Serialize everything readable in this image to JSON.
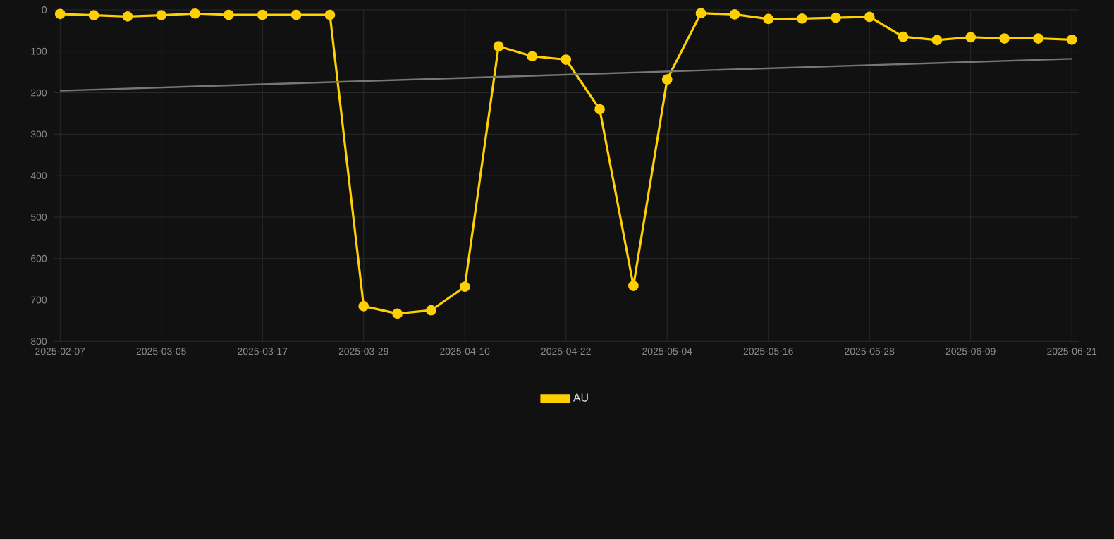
{
  "chart_data": {
    "type": "line",
    "categories": [
      "2025-02-07",
      null,
      null,
      "2025-03-05",
      null,
      null,
      "2025-03-17",
      null,
      null,
      "2025-03-29",
      null,
      null,
      "2025-04-10",
      null,
      null,
      "2025-04-22",
      null,
      null,
      "2025-05-04",
      null,
      null,
      "2025-05-16",
      null,
      null,
      "2025-05-28",
      null,
      null,
      "2025-06-09",
      null,
      null,
      "2025-06-21"
    ],
    "series": [
      {
        "name": "AU",
        "color": "#ffd000",
        "values": [
          10,
          13,
          16,
          13,
          9,
          12,
          12,
          12,
          12,
          715,
          733,
          725,
          668,
          88,
          112,
          120,
          240,
          666,
          168,
          8,
          11,
          22,
          21,
          19,
          17,
          65,
          73,
          66,
          69,
          69,
          72
        ]
      },
      {
        "type": "line",
        "color": "#777777",
        "marker": "none",
        "values": [
          195,
          null,
          null,
          null,
          null,
          null,
          null,
          null,
          null,
          null,
          null,
          null,
          null,
          null,
          null,
          null,
          null,
          null,
          null,
          null,
          null,
          null,
          null,
          null,
          null,
          null,
          null,
          null,
          null,
          null,
          118
        ]
      }
    ],
    "ylim": [
      800,
      0
    ],
    "yticks": [
      0,
      100,
      200,
      300,
      400,
      500,
      600,
      700,
      800
    ],
    "grid": true,
    "legend": "bottom",
    "marker": "circle",
    "line_style": "solid"
  }
}
